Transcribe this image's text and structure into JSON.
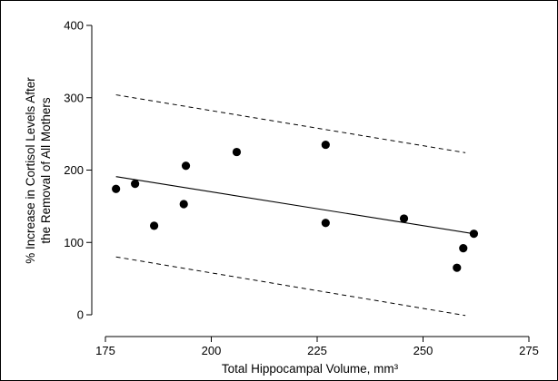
{
  "chart_data": {
    "type": "scatter",
    "title": "",
    "xlabel": "Total Hippocampal Volume, mm³",
    "ylabel_lines": [
      "% Increase in Cortisol Levels After",
      "the Removal of All Mothers"
    ],
    "xlim": [
      175,
      275
    ],
    "ylim": [
      0,
      400
    ],
    "x_ticks": [
      175,
      200,
      225,
      250,
      275
    ],
    "y_ticks": [
      0,
      100,
      200,
      300,
      400
    ],
    "grid": false,
    "series": [
      {
        "kind": "points",
        "x": [
          177.5,
          182,
          186.5,
          193.5,
          194,
          206,
          227,
          227,
          245.5,
          258,
          259.5,
          262
        ],
        "y": [
          174,
          181,
          123,
          153,
          206,
          225,
          235,
          127,
          133,
          65,
          92,
          112
        ]
      },
      {
        "kind": "fit-line",
        "x": [
          177.5,
          262
        ],
        "y": [
          191,
          112
        ]
      },
      {
        "kind": "upper-confidence-band",
        "x": [
          177.5,
          260
        ],
        "y": [
          304,
          224
        ]
      },
      {
        "kind": "lower-confidence-band",
        "x": [
          177.5,
          260
        ],
        "y": [
          80,
          -1
        ]
      }
    ]
  }
}
